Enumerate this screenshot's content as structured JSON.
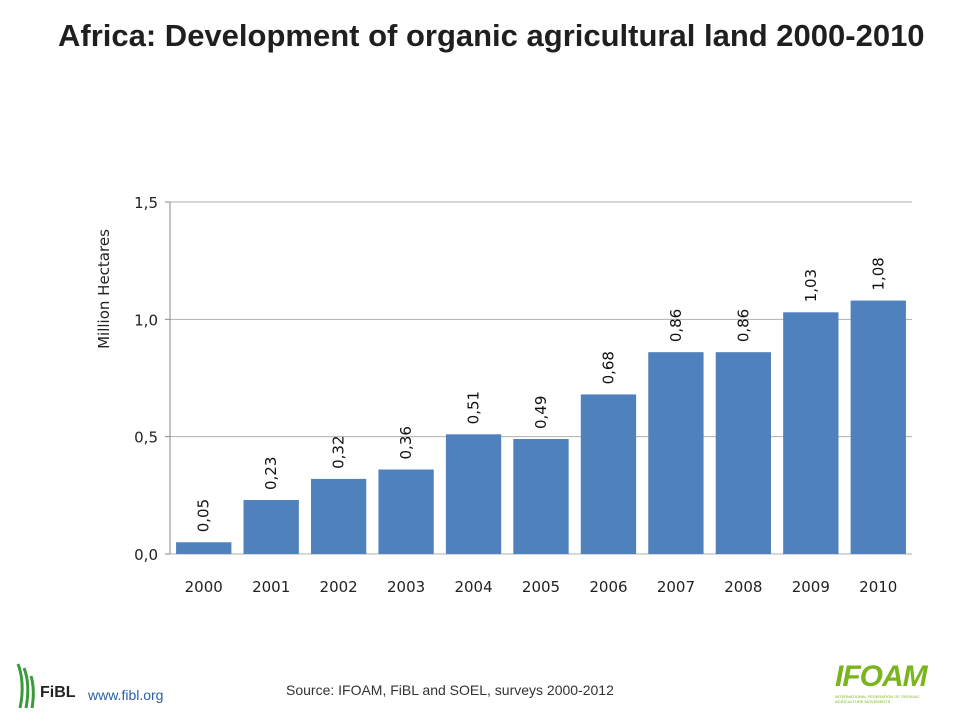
{
  "title": "Africa: Development of organic agricultural land 2000-2010",
  "source": "Source: IFOAM, FiBL and SOEL, surveys 2000-2012",
  "footer": {
    "fibl_url": "www.fibl.org",
    "fibl_logo_text": "FiBL",
    "ifoam_logo_text": "IFOAM",
    "ifoam_sub_text": "INTERNATIONAL FEDERATION OF ORGANIC AGRICULTURE MOVEMENTS"
  },
  "colors": {
    "bar": "#4f81bd",
    "grid": "#b0b0b0",
    "fibl_green": "#3a9a3a",
    "ifoam_green": "#7ab51d"
  },
  "chart_data": {
    "type": "bar",
    "title": "Africa: Development of organic agricultural land 2000-2010",
    "xlabel": "",
    "ylabel": "Million Hectares",
    "categories": [
      "2000",
      "2001",
      "2002",
      "2003",
      "2004",
      "2005",
      "2006",
      "2007",
      "2008",
      "2009",
      "2010"
    ],
    "values": [
      0.05,
      0.23,
      0.32,
      0.36,
      0.51,
      0.49,
      0.68,
      0.86,
      0.86,
      1.03,
      1.08
    ],
    "value_labels": [
      "0,05",
      "0,23",
      "0,32",
      "0,36",
      "0,51",
      "0,49",
      "0,68",
      "0,86",
      "0,86",
      "1,03",
      "1,08"
    ],
    "ylim": [
      0,
      1.5
    ],
    "yticks": [
      0,
      0.5,
      1.0,
      1.5
    ],
    "ytick_labels": [
      "0,0",
      "0,5",
      "1,0",
      "1,5"
    ],
    "grid": true,
    "legend": "none"
  }
}
